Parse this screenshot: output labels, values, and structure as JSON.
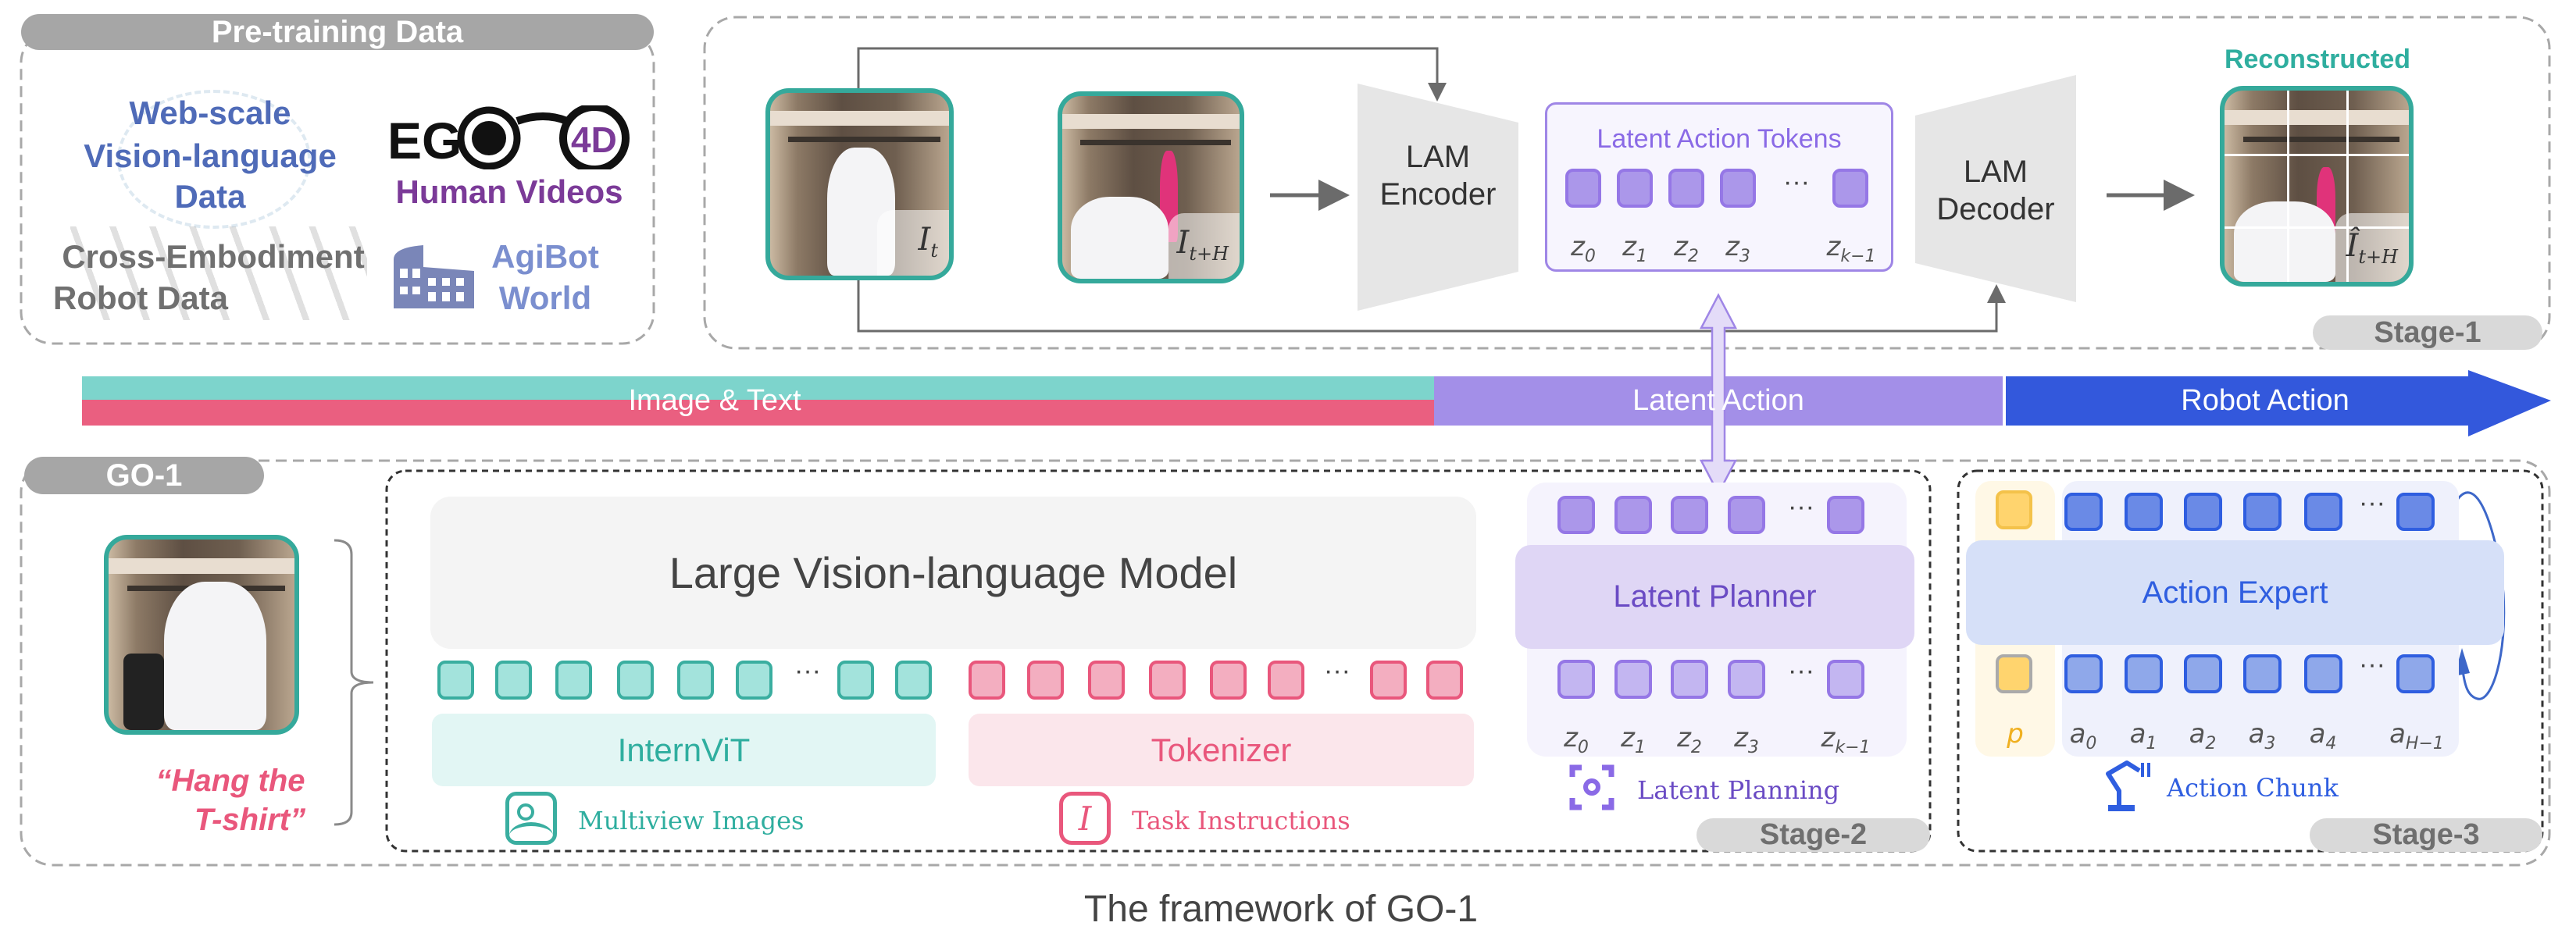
{
  "pretraining": {
    "title": "Pre-training Data",
    "web_scale": [
      "Web-scale",
      "Vision-language",
      "Data"
    ],
    "ego4d_logo": "EGO4D",
    "human_videos": "Human Videos",
    "cross_embodiment": [
      "Cross-Embodiment",
      "Robot Data"
    ],
    "agibot": [
      "AgiBot",
      "World"
    ]
  },
  "stage1": {
    "frame_current": {
      "base": "I",
      "sub": "t"
    },
    "frame_future": {
      "base": "I",
      "sub": "t+H"
    },
    "encoder": [
      "LAM",
      "Encoder"
    ],
    "decoder": [
      "LAM",
      "Decoder"
    ],
    "tokens_title": "Latent Action Tokens",
    "token_labels": [
      {
        "b": "z",
        "s": "0"
      },
      {
        "b": "z",
        "s": "1"
      },
      {
        "b": "z",
        "s": "2"
      },
      {
        "b": "z",
        "s": "3"
      },
      {
        "b": "z",
        "s": "k−1"
      }
    ],
    "ellipsis": "···",
    "reconstructed_title": "Reconstructed",
    "reconstructed_frame": {
      "base": "Î",
      "sub": "t+H"
    },
    "stage_label": "Stage-1"
  },
  "band": {
    "image_text": "Image & Text",
    "latent_action": "Latent Action",
    "robot_action": "Robot Action",
    "colors": {
      "teal": "#7dd4cc",
      "pink": "#ea5f80",
      "latent": "#a38fe8",
      "robot": "#3358dc"
    }
  },
  "go1": {
    "title": "GO-1",
    "instruction": [
      "“Hang the",
      "T-shirt”"
    ],
    "vlm_title": "Large Vision-language Model",
    "internvit": "InternViT",
    "tokenizer": "Tokenizer",
    "multiview_images": "Multiview Images",
    "task_instructions": "Task Instructions",
    "ellipsis": "···",
    "latent_planner": "Latent Planner",
    "latent_labels": [
      {
        "b": "z",
        "s": "0"
      },
      {
        "b": "z",
        "s": "1"
      },
      {
        "b": "z",
        "s": "2"
      },
      {
        "b": "z",
        "s": "3"
      },
      {
        "b": "z",
        "s": "k−1"
      }
    ],
    "latent_planning": "Latent Planning",
    "stage2_label": "Stage-2",
    "action_expert": "Action Expert",
    "proprio_label": "p",
    "action_labels": [
      {
        "b": "a",
        "s": "0"
      },
      {
        "b": "a",
        "s": "1"
      },
      {
        "b": "a",
        "s": "2"
      },
      {
        "b": "a",
        "s": "3"
      },
      {
        "b": "a",
        "s": "4"
      },
      {
        "b": "a",
        "s": "H−1"
      }
    ],
    "action_chunk": "Action Chunk",
    "stage3_label": "Stage-3"
  },
  "caption": "The framework of GO-1"
}
